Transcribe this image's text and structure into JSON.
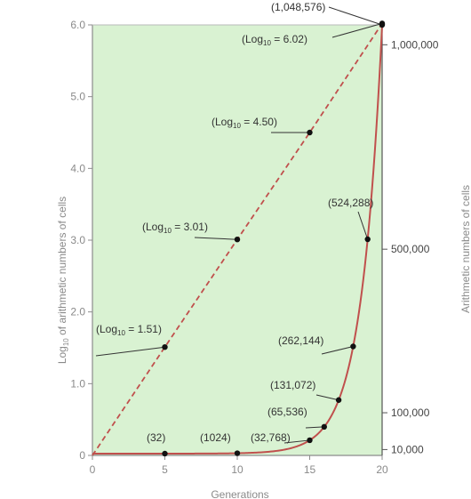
{
  "chart_data": {
    "type": "line",
    "xlabel": "Generations",
    "ylabel_left": {
      "pre": "Log",
      "sub": "10",
      "post": " of arithmetic numbers of cells"
    },
    "ylabel_right": "Arithmetic numbers of cells",
    "xlim": [
      0,
      20
    ],
    "ylim": [
      0,
      6.0
    ],
    "x_ticks": [
      "0",
      "5",
      "10",
      "15",
      "20"
    ],
    "y_ticks": [
      "0",
      "1.0",
      "2.0",
      "3.0",
      "4.0",
      "5.0",
      "6.0"
    ],
    "right_ticks": [
      {
        "label": "1,000,000",
        "count": 1000000
      },
      {
        "label": "500,000",
        "count": 500000
      },
      {
        "label": "100,000",
        "count": 100000
      },
      {
        "label": "10,000",
        "count": 10000
      }
    ],
    "grid": false,
    "background_color": "#d9f2d2",
    "series": [
      {
        "style": "dashed",
        "color": "#c0504d",
        "scale": "log10 (left axis)",
        "points": [
          {
            "x": 0,
            "y": 0.0
          },
          {
            "x": 5,
            "y": 1.51
          },
          {
            "x": 10,
            "y": 3.01
          },
          {
            "x": 15,
            "y": 4.5
          },
          {
            "x": 20,
            "y": 6.02
          }
        ]
      },
      {
        "style": "solid",
        "color": "#c0504d",
        "scale": "arithmetic (right axis)",
        "points": [
          {
            "x": 0,
            "y": 1
          },
          {
            "x": 5,
            "y": 32
          },
          {
            "x": 10,
            "y": 1024
          },
          {
            "x": 15,
            "y": 32768
          },
          {
            "x": 16,
            "y": 65536
          },
          {
            "x": 17,
            "y": 131072
          },
          {
            "x": 18,
            "y": 262144
          },
          {
            "x": 19,
            "y": 524288
          },
          {
            "x": 20,
            "y": 1048576
          }
        ]
      }
    ],
    "annotations": [
      {
        "pre": "(Log",
        "sub": "10",
        "post": " = 1.51)",
        "series": 0,
        "point": 1
      },
      {
        "pre": "(Log",
        "sub": "10",
        "post": " = 3.01)",
        "series": 0,
        "point": 2
      },
      {
        "pre": "(Log",
        "sub": "10",
        "post": " = 4.50)",
        "series": 0,
        "point": 3
      },
      {
        "pre": "(Log",
        "sub": "10",
        "post": " = 6.02)",
        "series": 0,
        "point": 4
      },
      {
        "text": "(32)",
        "series": 1,
        "point": 1
      },
      {
        "text": "(1024)",
        "series": 1,
        "point": 2
      },
      {
        "text": "(32,768)",
        "series": 1,
        "point": 3
      },
      {
        "text": "(65,536)",
        "series": 1,
        "point": 4
      },
      {
        "text": "(131,072)",
        "series": 1,
        "point": 5
      },
      {
        "text": "(262,144)",
        "series": 1,
        "point": 6
      },
      {
        "text": "(524,288)",
        "series": 1,
        "point": 7
      },
      {
        "text": "(1,048,576)",
        "series": 1,
        "point": 8
      }
    ]
  }
}
